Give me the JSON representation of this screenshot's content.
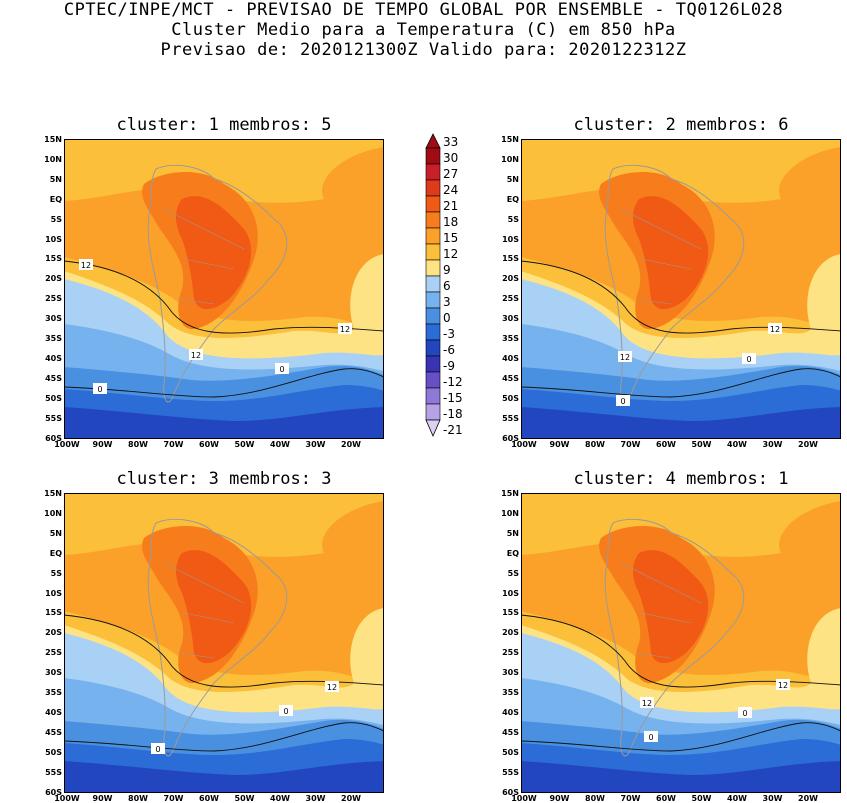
{
  "header": {
    "line1": "CPTEC/INPE/MCT - PREVISAO DE TEMPO GLOBAL POR ENSEMBLE - TQ0126L028",
    "line2": "Cluster Medio para a Temperatura (C) em 850 hPa",
    "line3": "Previsao de: 2020121300Z   Valido para: 2020122312Z"
  },
  "panels": [
    {
      "title": "cluster: 1  membros: 5",
      "contour_labels": [
        "12",
        "12",
        "12",
        "0",
        "0"
      ]
    },
    {
      "title": "cluster: 2  membros: 6",
      "contour_labels": [
        "12",
        "12",
        "0",
        "0"
      ]
    },
    {
      "title": "cluster: 3  membros: 3",
      "contour_labels": [
        "12",
        "0",
        "0"
      ]
    },
    {
      "title": "cluster: 4  membros: 1",
      "contour_labels": [
        "12",
        "12",
        "0",
        "0"
      ]
    }
  ],
  "axes": {
    "lat_ticks": [
      "15N",
      "10N",
      "5N",
      "EQ",
      "5S",
      "10S",
      "15S",
      "20S",
      "25S",
      "30S",
      "35S",
      "40S",
      "45S",
      "50S",
      "55S",
      "60S"
    ],
    "lon_ticks": [
      "100W",
      "90W",
      "80W",
      "70W",
      "60W",
      "50W",
      "40W",
      "30W",
      "20W"
    ]
  },
  "colorbar": {
    "labels": [
      "33",
      "30",
      "27",
      "24",
      "21",
      "18",
      "15",
      "12",
      "9",
      "6",
      "3",
      "0",
      "-3",
      "-6",
      "-9",
      "-12",
      "-15",
      "-18",
      "-21"
    ],
    "colors": {
      "c30": "#a10c14",
      "c27": "#c8202a",
      "c24": "#e03a1c",
      "c21": "#f05a14",
      "c18": "#f77d1c",
      "c15": "#fba12a",
      "c12": "#fbbf3a",
      "c9": "#fde384",
      "c6": "#a9d0f5",
      "c3": "#75b2ee",
      "c0": "#4a90e0",
      "cm3": "#2b6cd6",
      "cm6": "#2146c0",
      "cm9": "#3a34b4",
      "cm12": "#6650c6",
      "cm15": "#8f78d6",
      "cm18": "#b6a2e4",
      "cm21": "#ddd0f2"
    }
  }
}
